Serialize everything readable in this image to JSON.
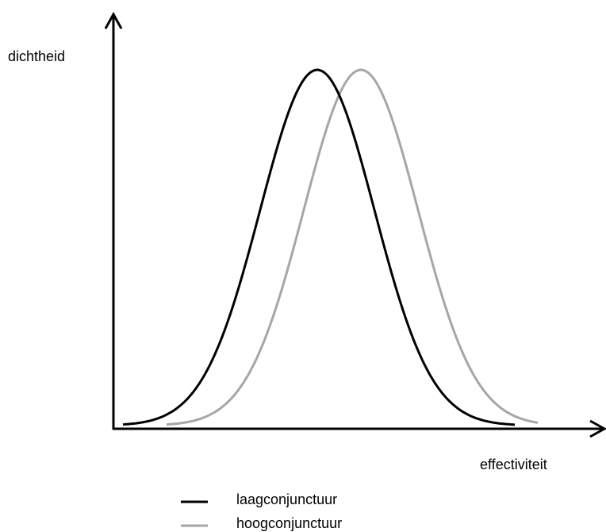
{
  "axes": {
    "y_label": "dichtheid",
    "x_label": "effectiviteit"
  },
  "legend": [
    {
      "label": "laagconjunctuur",
      "color": "#000000"
    },
    {
      "label": "hoogconjunctuur",
      "color": "#a6a6a6"
    }
  ]
}
